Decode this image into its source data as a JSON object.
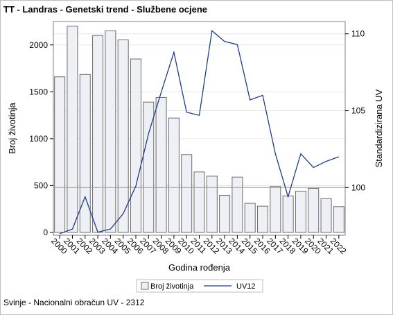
{
  "title": "TT - Landras - Genetski trend - Službene ocjene",
  "footnote": "Svinje - Nacionalni obračun UV - 2312",
  "colors": {
    "bar_fill": "#eef0f5",
    "bar_stroke": "#6b6b6b",
    "line": "#1f3c88",
    "grid": "#e6e6e6",
    "ref_line": "#999999"
  },
  "chart_data": {
    "type": "bar",
    "xlabel": "Godina rođenja",
    "ylabel": "Broj životinja",
    "y2label": "Standardizirana UV",
    "ylim": [
      -30,
      2250
    ],
    "y2lim": [
      96.9,
      110.8
    ],
    "yticks": [
      0,
      500,
      1000,
      1500,
      2000
    ],
    "y2ticks": [
      100,
      105,
      110
    ],
    "reference_line_y2": 100,
    "grid": true,
    "legend_position": "bottom",
    "categories": [
      "2000",
      "2001",
      "2002",
      "2003",
      "2004",
      "2005",
      "2006",
      "2007",
      "2008",
      "2009",
      "2010",
      "2011",
      "2012",
      "2013",
      "2014",
      "2015",
      "2016",
      "2017",
      "2018",
      "2019",
      "2020",
      "2021",
      "2022"
    ],
    "series": [
      {
        "name": "Broj životinja",
        "kind": "bar",
        "axis": "y",
        "values": [
          1660,
          2200,
          1685,
          2100,
          2150,
          2055,
          1850,
          1390,
          1440,
          1220,
          830,
          645,
          600,
          395,
          590,
          310,
          280,
          490,
          390,
          440,
          470,
          360,
          275
        ]
      },
      {
        "name": "UV12",
        "kind": "line",
        "axis": "y2",
        "values": [
          97.0,
          97.3,
          99.4,
          97.1,
          97.3,
          98.3,
          100.1,
          103.5,
          106.2,
          108.8,
          104.9,
          104.7,
          110.2,
          109.5,
          109.3,
          105.7,
          106.0,
          102.2,
          99.4,
          102.2,
          101.3,
          101.7,
          102.0
        ]
      }
    ]
  }
}
